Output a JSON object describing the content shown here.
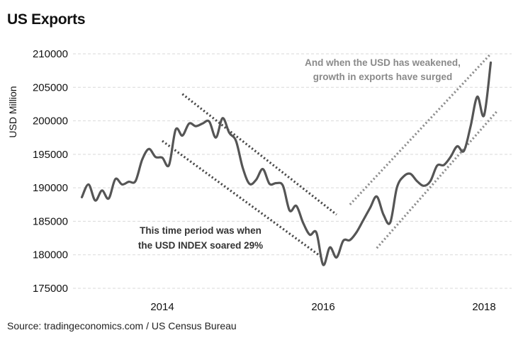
{
  "title": "US Exports",
  "source": "Source:  tradingeconomics.com / US Census Bureau",
  "chart_data": {
    "type": "line",
    "title": "US Exports",
    "ylabel": "USD Million",
    "xlabel": "",
    "ylim": [
      175000,
      210000
    ],
    "yticks": [
      "175000",
      "180000",
      "185000",
      "190000",
      "195000",
      "200000",
      "205000",
      "210000"
    ],
    "xticks": [
      "2014",
      "2016",
      "2018"
    ],
    "grid": true,
    "series": [
      {
        "x": [
          "2013-01",
          "2013-02",
          "2013-03",
          "2013-04",
          "2013-05",
          "2013-06",
          "2013-07",
          "2013-08",
          "2013-09",
          "2013-10",
          "2013-11",
          "2013-12",
          "2014-01",
          "2014-02",
          "2014-03",
          "2014-04",
          "2014-05",
          "2014-06",
          "2014-07",
          "2014-08",
          "2014-09",
          "2014-10",
          "2014-11",
          "2014-12",
          "2015-01",
          "2015-02",
          "2015-03",
          "2015-04",
          "2015-05",
          "2015-06",
          "2015-07",
          "2015-08",
          "2015-09",
          "2015-10",
          "2015-11",
          "2015-12",
          "2016-01",
          "2016-02",
          "2016-03",
          "2016-04",
          "2016-05",
          "2016-06",
          "2016-07",
          "2016-08",
          "2016-09",
          "2016-10",
          "2016-11",
          "2016-12",
          "2017-01",
          "2017-02",
          "2017-03",
          "2017-04",
          "2017-05",
          "2017-06",
          "2017-07",
          "2017-08",
          "2017-09",
          "2017-10",
          "2017-11",
          "2017-12",
          "2018-01",
          "2018-02"
        ],
        "values": [
          188600,
          190500,
          188100,
          189600,
          188400,
          191300,
          190500,
          190900,
          191000,
          194200,
          195800,
          194600,
          194500,
          193400,
          198700,
          197800,
          199600,
          199200,
          199600,
          199900,
          197500,
          200400,
          198200,
          197000,
          193000,
          190600,
          191200,
          192800,
          190600,
          190700,
          190300,
          186600,
          187300,
          184800,
          183000,
          183300,
          178500,
          181100,
          179600,
          182100,
          182200,
          183400,
          185200,
          187000,
          188700,
          186000,
          184800,
          190000,
          191700,
          192100,
          191000,
          190300,
          191000,
          193300,
          193400,
          194600,
          196200,
          195500,
          199200,
          203600,
          200800,
          208700
        ]
      }
    ],
    "annotations": [
      {
        "text": [
          "This time period was when",
          "the USD INDEX soared 29%"
        ]
      },
      {
        "text": [
          "And when the USD has weakened,",
          "growth in exports have surged"
        ]
      }
    ],
    "trend_channels": [
      {
        "style": "dark-dotted",
        "upper": [
          [
            "2014-04",
            204000
          ],
          [
            "2016-03",
            186000
          ]
        ],
        "lower": [
          [
            "2014-01",
            197000
          ],
          [
            "2016-01",
            179500
          ]
        ]
      },
      {
        "style": "light-dotted",
        "upper": [
          [
            "2016-05",
            187500
          ],
          [
            "2018-02",
            210000
          ]
        ],
        "lower": [
          [
            "2016-09",
            181000
          ],
          [
            "2018-03",
            201500
          ]
        ]
      }
    ]
  }
}
